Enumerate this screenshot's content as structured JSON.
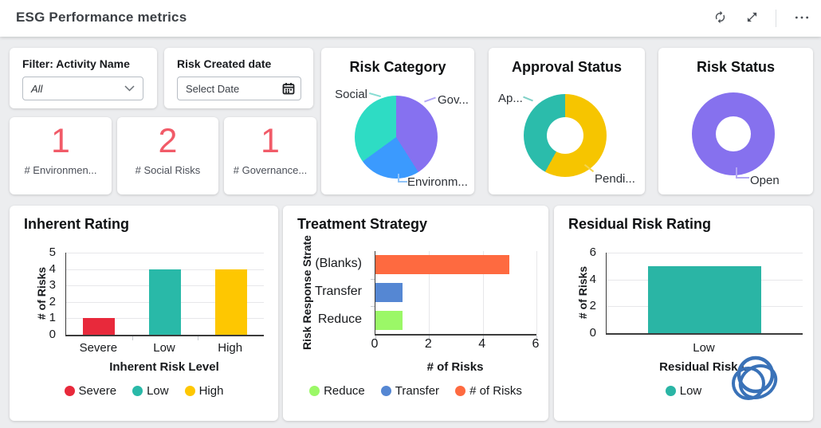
{
  "header": {
    "title": "ESG Performance metrics"
  },
  "filters": {
    "activity_label": "Filter: Activity Name",
    "activity_value": "All",
    "date_label": "Risk Created date",
    "date_placeholder": "Select Date"
  },
  "kpis": [
    {
      "value": "1",
      "label": "# Environmen..."
    },
    {
      "value": "2",
      "label": "# Social Risks"
    },
    {
      "value": "1",
      "label": "# Governance..."
    }
  ],
  "colors": {
    "kpi_value": "#f15b68",
    "page_bg": "#ecedef",
    "card_bg": "#ffffff",
    "scribble_ink": "#3a72b8"
  },
  "chart_data": [
    {
      "type": "pie",
      "title": "Risk Category",
      "slices": [
        {
          "label": "Gov...",
          "percent": 41,
          "color": "#8671f0"
        },
        {
          "label": "Environm...",
          "percent": 24,
          "color": "#3b9afe"
        },
        {
          "label": "Social",
          "percent": 35,
          "color": "#2edcc4"
        }
      ]
    },
    {
      "type": "pie",
      "title": "Approval Status",
      "donut": true,
      "slices": [
        {
          "label": "Pendi...",
          "percent": 58,
          "color": "#f6c500"
        },
        {
          "label": "Ap...",
          "percent": 42,
          "color": "#2bbcab"
        }
      ]
    },
    {
      "type": "pie",
      "title": "Risk Status",
      "donut": true,
      "slices": [
        {
          "label": "Open",
          "percent": 100,
          "color": "#8671ee"
        }
      ]
    },
    {
      "type": "bar",
      "title": "Inherent Rating",
      "xlabel": "Inherent Risk Level",
      "ylabel": "# of Risks",
      "ylim": [
        0,
        5
      ],
      "yticks": [
        0,
        1,
        2,
        3,
        4,
        5
      ],
      "categories": [
        "Severe",
        "Low",
        "High"
      ],
      "values": [
        1,
        4,
        4
      ],
      "colors": [
        "#e8293b",
        "#29b9a8",
        "#fec701"
      ],
      "legend": [
        {
          "label": "Severe",
          "color": "#e8293b"
        },
        {
          "label": "Low",
          "color": "#29b9a8"
        },
        {
          "label": "High",
          "color": "#fec701"
        }
      ]
    },
    {
      "type": "bar-horizontal",
      "title": "Treatment Strategy",
      "xlabel": "# of Risks",
      "ylabel": "Risk Response Strate",
      "xlim": [
        0,
        6
      ],
      "xticks": [
        0,
        2,
        4,
        6
      ],
      "categories": [
        "(Blanks)",
        "Transfer",
        "Reduce"
      ],
      "values": [
        5,
        1,
        1
      ],
      "colors": [
        "#fe6a40",
        "#5587d3",
        "#9bf867"
      ],
      "legend": [
        {
          "label": "Reduce",
          "color": "#9bf867"
        },
        {
          "label": "Transfer",
          "color": "#5587d3"
        },
        {
          "label": "# of Risks",
          "color": "#fe6a40"
        }
      ]
    },
    {
      "type": "bar",
      "title": "Residual Risk Rating",
      "xlabel": "Residual Risk L",
      "ylabel": "# of Risks",
      "ylim": [
        0,
        6
      ],
      "yticks": [
        0,
        2,
        4,
        6
      ],
      "categories": [
        "Low"
      ],
      "values": [
        5
      ],
      "colors": [
        "#2ab5a5"
      ],
      "legend": [
        {
          "label": "Low",
          "color": "#2ab5a5"
        }
      ]
    }
  ]
}
